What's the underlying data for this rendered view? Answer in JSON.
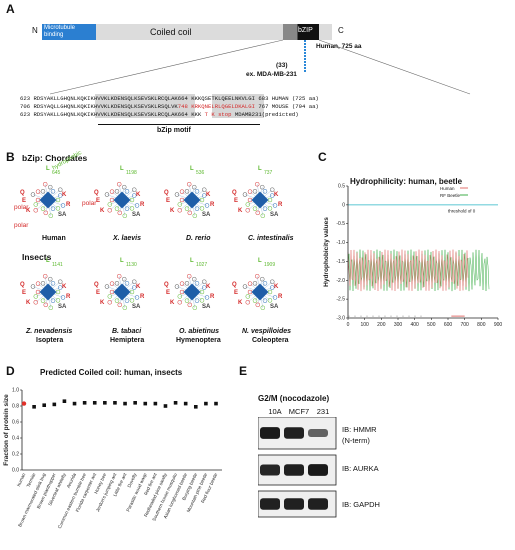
{
  "panels": {
    "A": "A",
    "B": "B",
    "C": "C",
    "D": "D",
    "E": "E"
  },
  "panelA": {
    "n_term": "N",
    "c_term": "C",
    "microtubule_label": "Microtubule\nbinding",
    "coiled_coil_label": "Coiled coil",
    "bzip_label": "bZIP",
    "human_label": "Human, 725 aa",
    "deletion_count": "(33)",
    "deletion_label": "ex. MDA-MB-231",
    "alignment": [
      {
        "start": "623",
        "seq": "RDSYAKLLGHQNLKQKIKHVVKLKDENSQLKSEVSKLRCQLAK",
        "end_seq": "664 KKKQSETKLQEELNKVLGI",
        "stop": "683",
        "species": "HUMAN (725 aa)"
      },
      {
        "start": "706",
        "seq": "RDSYAQLLGHQNLKQKIKHVVKLKDENSQLKSEVSKLRSQLVK",
        "end_seq": "748 KRKQNELRLQGELDKALGI",
        "stop": "767",
        "species": "MOUSE (794 aa)"
      },
      {
        "start": "623",
        "seq": "RDSYAKLLGHQNLKQKIKHVVKLKDENSQLKSEVSKLRCQLAK",
        "end_seq": "664 KKK",
        "stop": "T K stop",
        "species": "MDAMB231(predicted)"
      }
    ],
    "motif_label": "bZip motif"
  },
  "panelB": {
    "title_chordates": "bZip: Chordates",
    "title_insects": "Insects",
    "hydrophobic_label": "hydrophobic",
    "polar_label": "polar",
    "chordates": [
      {
        "name": "Human",
        "order": ""
      },
      {
        "name": "X. laevis",
        "order": ""
      },
      {
        "name": "D. rerio",
        "order": ""
      },
      {
        "name": "C. intestinalis",
        "order": ""
      }
    ],
    "insects": [
      {
        "name": "Z. nevadensis",
        "order": "Isoptera"
      },
      {
        "name": "B. tabaci",
        "order": "Hemiptera"
      },
      {
        "name": "O. abietinus",
        "order": "Hymenoptera"
      },
      {
        "name": "N. vespilloides",
        "order": "Coleoptera"
      }
    ],
    "helix_numbers": [
      "645",
      "1198",
      "536",
      "737",
      "1141",
      "1130",
      "1027",
      "1909"
    ]
  },
  "panelC": {
    "title": "Hydrophilicity: human, beetle",
    "ylabel": "Hydrophobicity values",
    "legend": [
      "Human",
      "RF Beetle"
    ],
    "threshold_label": "threshold of 0"
  },
  "panelD": {
    "title": "Predicted Coiled coil: human, insects",
    "ylabel": "Fraction of protein size"
  },
  "panelE": {
    "condition": "G2/M (nocodazole)",
    "lanes": [
      "10A",
      "MCF7",
      "231"
    ],
    "blots": [
      {
        "label": "IB: HMMR\n(N-term)",
        "intensities": [
          0.95,
          0.9,
          0.35
        ]
      },
      {
        "label": "IB: AURKA",
        "intensities": [
          0.85,
          0.9,
          0.95
        ]
      },
      {
        "label": "IB: GAPDH",
        "intensities": [
          0.9,
          0.9,
          0.9
        ]
      }
    ]
  },
  "chart_data": [
    {
      "type": "line",
      "title": "Hydrophilicity: human, beetle",
      "xlabel": "",
      "ylabel": "Hydrophobicity values",
      "xlim": [
        0,
        900
      ],
      "ylim": [
        -3.0,
        0.5
      ],
      "x_ticks": [
        "0",
        "100",
        "200",
        "300",
        "400",
        "500",
        "600",
        "700",
        "800",
        "900"
      ],
      "y_ticks": [
        "0.5",
        "0",
        "-0.5",
        "-1.0",
        "-1.5",
        "-2.0",
        "-2.5",
        "-3.0"
      ],
      "series": [
        {
          "name": "Human",
          "color": "#e0726e",
          "length": 725
        },
        {
          "name": "RF Beetle",
          "color": "#3fae4a",
          "length": 850
        }
      ],
      "threshold": {
        "label": "threshold of 0",
        "y": 0,
        "color": "#27b5c4"
      }
    },
    {
      "type": "scatter",
      "title": "Predicted Coiled coil: human, insects",
      "ylabel": "Fraction of protein size",
      "ylim": [
        0.0,
        1.0
      ],
      "y_ticks": [
        "1.0",
        "0.8",
        "0.6",
        "0.4",
        "0.2",
        "0.0"
      ],
      "categories": [
        "human",
        "Termite",
        "Brown marmorated stink bug",
        "Brown planthopper",
        "Silverleaf whitefly",
        "Anurida",
        "Common eastern bumble bee",
        "Florida carpenter ant",
        "Honey bee",
        "Jerdon's jumping ant",
        "Little fire ant",
        "Dovefly",
        "Parasitic wood wasp",
        "Red fire ant",
        "Redheaded pine sawfly",
        "Southern house mosquito",
        "Asian longhorned beetle",
        "Burying beetle",
        "Mountain pine beetle",
        "Red flour beetle"
      ],
      "values": [
        0.83,
        0.79,
        0.81,
        0.82,
        0.86,
        0.83,
        0.84,
        0.84,
        0.84,
        0.84,
        0.83,
        0.84,
        0.83,
        0.83,
        0.8,
        0.84,
        0.83,
        0.79,
        0.83,
        0.83
      ],
      "highlight_color": "#e0302a"
    }
  ]
}
